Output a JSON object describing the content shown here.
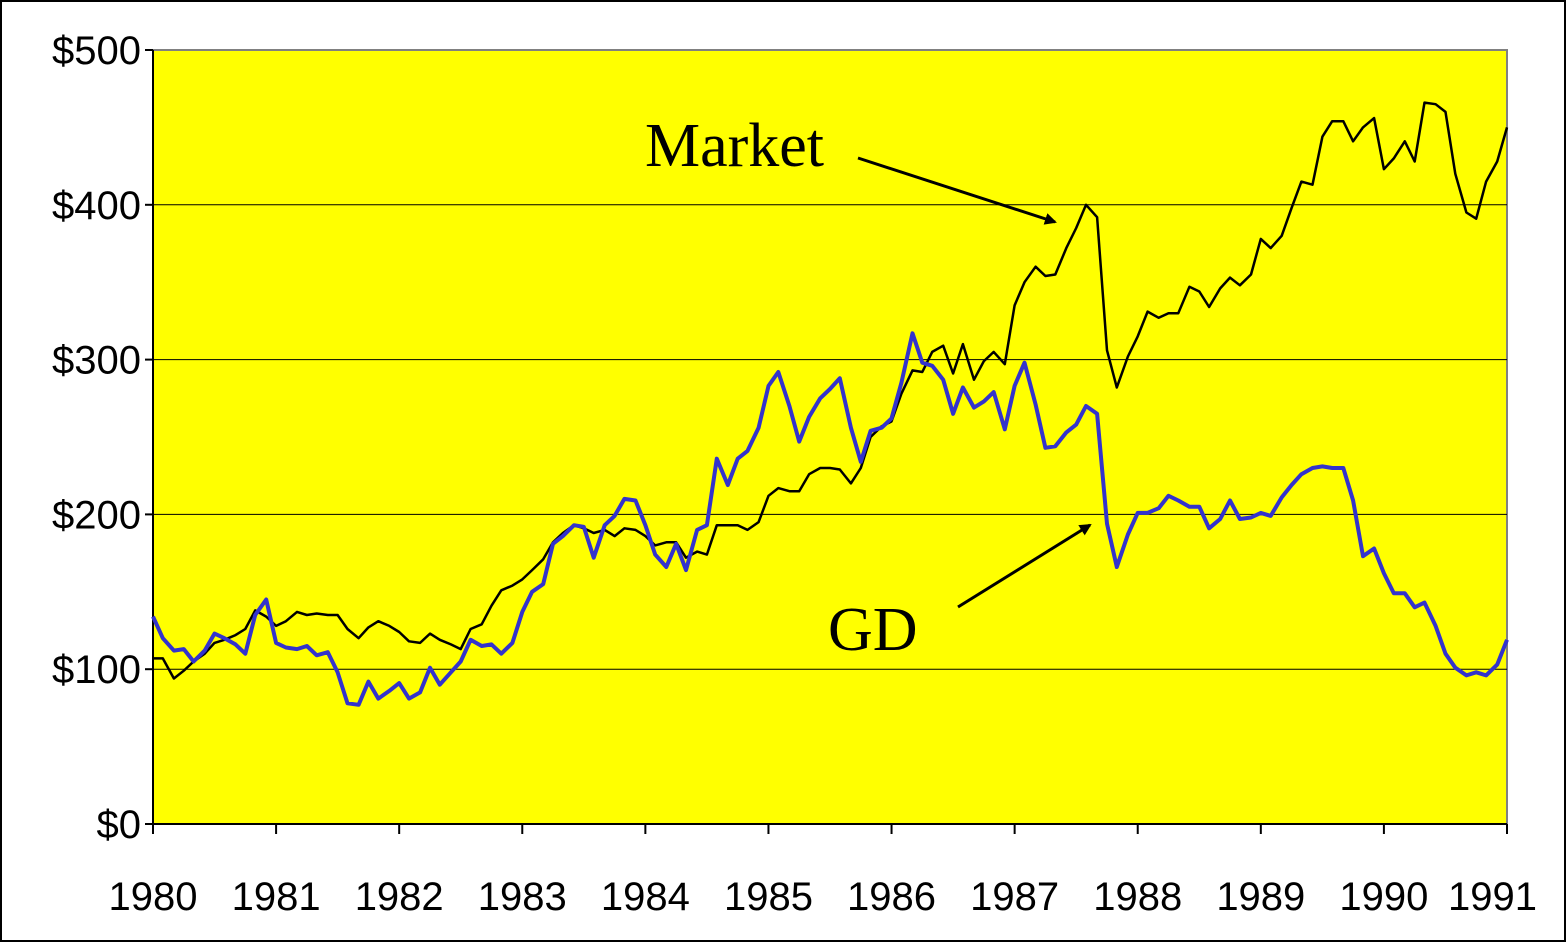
{
  "chart_data": {
    "type": "line",
    "title": "",
    "xlabel": "",
    "ylabel": "",
    "xlim": [
      1980,
      1991
    ],
    "ylim": [
      0,
      500
    ],
    "y_ticks": [
      "$0",
      "$100",
      "$200",
      "$300",
      "$400",
      "$500"
    ],
    "y_tick_values": [
      0,
      100,
      200,
      300,
      400,
      500
    ],
    "x_ticks": [
      "1980",
      "1981",
      "1982",
      "1983",
      "1984",
      "1985",
      "1986",
      "1987",
      "1988",
      "1989",
      "1990",
      "1991"
    ],
    "x_tick_values": [
      1980,
      1981,
      1982,
      1983,
      1984,
      1985,
      1986,
      1987,
      1988,
      1989,
      1990,
      1991
    ],
    "grid": "horizontal",
    "plot_background": "#FFFF00",
    "series": [
      {
        "name": "Market",
        "color": "#000000",
        "points": [
          [
            1980.0,
            107
          ],
          [
            1980.08,
            107
          ],
          [
            1980.17,
            94
          ],
          [
            1980.25,
            99
          ],
          [
            1980.33,
            105
          ],
          [
            1980.42,
            110
          ],
          [
            1980.5,
            117
          ],
          [
            1980.58,
            119
          ],
          [
            1980.67,
            122
          ],
          [
            1980.75,
            126
          ],
          [
            1980.83,
            138
          ],
          [
            1980.92,
            134
          ],
          [
            1981.0,
            128
          ],
          [
            1981.08,
            131
          ],
          [
            1981.17,
            137
          ],
          [
            1981.25,
            135
          ],
          [
            1981.33,
            136
          ],
          [
            1981.42,
            135
          ],
          [
            1981.5,
            135
          ],
          [
            1981.58,
            126
          ],
          [
            1981.67,
            120
          ],
          [
            1981.75,
            127
          ],
          [
            1981.83,
            131
          ],
          [
            1981.92,
            128
          ],
          [
            1982.0,
            124
          ],
          [
            1982.08,
            118
          ],
          [
            1982.17,
            117
          ],
          [
            1982.25,
            123
          ],
          [
            1982.33,
            119
          ],
          [
            1982.42,
            116
          ],
          [
            1982.5,
            113
          ],
          [
            1982.58,
            126
          ],
          [
            1982.67,
            129
          ],
          [
            1982.75,
            141
          ],
          [
            1982.83,
            151
          ],
          [
            1982.92,
            154
          ],
          [
            1983.0,
            158
          ],
          [
            1983.08,
            164
          ],
          [
            1983.17,
            171
          ],
          [
            1983.25,
            182
          ],
          [
            1983.33,
            188
          ],
          [
            1983.42,
            193
          ],
          [
            1983.5,
            191
          ],
          [
            1983.58,
            188
          ],
          [
            1983.67,
            190
          ],
          [
            1983.75,
            186
          ],
          [
            1983.83,
            191
          ],
          [
            1983.92,
            190
          ],
          [
            1984.0,
            186
          ],
          [
            1984.08,
            180
          ],
          [
            1984.17,
            182
          ],
          [
            1984.25,
            182
          ],
          [
            1984.33,
            172
          ],
          [
            1984.42,
            176
          ],
          [
            1984.5,
            174
          ],
          [
            1984.58,
            193
          ],
          [
            1984.67,
            193
          ],
          [
            1984.75,
            193
          ],
          [
            1984.83,
            190
          ],
          [
            1984.92,
            195
          ],
          [
            1985.0,
            212
          ],
          [
            1985.08,
            217
          ],
          [
            1985.17,
            215
          ],
          [
            1985.25,
            215
          ],
          [
            1985.33,
            226
          ],
          [
            1985.42,
            230
          ],
          [
            1985.5,
            230
          ],
          [
            1985.58,
            229
          ],
          [
            1985.67,
            220
          ],
          [
            1985.75,
            230
          ],
          [
            1985.83,
            250
          ],
          [
            1985.92,
            257
          ],
          [
            1986.0,
            260
          ],
          [
            1986.08,
            278
          ],
          [
            1986.17,
            293
          ],
          [
            1986.25,
            292
          ],
          [
            1986.33,
            305
          ],
          [
            1986.42,
            309
          ],
          [
            1986.5,
            291
          ],
          [
            1986.58,
            310
          ],
          [
            1986.67,
            287
          ],
          [
            1986.75,
            299
          ],
          [
            1986.83,
            305
          ],
          [
            1986.92,
            297
          ],
          [
            1987.0,
            335
          ],
          [
            1987.08,
            350
          ],
          [
            1987.17,
            360
          ],
          [
            1987.25,
            354
          ],
          [
            1987.33,
            355
          ],
          [
            1987.42,
            372
          ],
          [
            1987.5,
            385
          ],
          [
            1987.58,
            400
          ],
          [
            1987.67,
            392
          ],
          [
            1987.75,
            306
          ],
          [
            1987.83,
            282
          ],
          [
            1987.92,
            302
          ],
          [
            1988.0,
            315
          ],
          [
            1988.08,
            331
          ],
          [
            1988.17,
            327
          ],
          [
            1988.25,
            330
          ],
          [
            1988.33,
            330
          ],
          [
            1988.42,
            347
          ],
          [
            1988.5,
            344
          ],
          [
            1988.58,
            334
          ],
          [
            1988.67,
            346
          ],
          [
            1988.75,
            353
          ],
          [
            1988.83,
            348
          ],
          [
            1988.92,
            355
          ],
          [
            1989.0,
            378
          ],
          [
            1989.08,
            372
          ],
          [
            1989.17,
            380
          ],
          [
            1989.25,
            398
          ],
          [
            1989.33,
            415
          ],
          [
            1989.42,
            413
          ],
          [
            1989.5,
            444
          ],
          [
            1989.58,
            454
          ],
          [
            1989.67,
            454
          ],
          [
            1989.75,
            441
          ],
          [
            1989.83,
            450
          ],
          [
            1989.92,
            456
          ],
          [
            1990.0,
            423
          ],
          [
            1990.08,
            430
          ],
          [
            1990.17,
            441
          ],
          [
            1990.25,
            428
          ],
          [
            1990.33,
            466
          ],
          [
            1990.42,
            465
          ],
          [
            1990.5,
            460
          ],
          [
            1990.58,
            420
          ],
          [
            1990.67,
            395
          ],
          [
            1990.75,
            391
          ],
          [
            1990.83,
            415
          ],
          [
            1990.92,
            428
          ],
          [
            1991.0,
            450
          ]
        ]
      },
      {
        "name": "GD",
        "color": "#3333CC",
        "points": [
          [
            1980.0,
            134
          ],
          [
            1980.08,
            120
          ],
          [
            1980.17,
            112
          ],
          [
            1980.25,
            113
          ],
          [
            1980.33,
            105
          ],
          [
            1980.42,
            112
          ],
          [
            1980.5,
            123
          ],
          [
            1980.58,
            120
          ],
          [
            1980.67,
            116
          ],
          [
            1980.75,
            110
          ],
          [
            1980.83,
            135
          ],
          [
            1980.92,
            145
          ],
          [
            1981.0,
            117
          ],
          [
            1981.08,
            114
          ],
          [
            1981.17,
            113
          ],
          [
            1981.25,
            115
          ],
          [
            1981.33,
            109
          ],
          [
            1981.42,
            111
          ],
          [
            1981.5,
            98
          ],
          [
            1981.58,
            78
          ],
          [
            1981.67,
            77
          ],
          [
            1981.75,
            92
          ],
          [
            1981.83,
            81
          ],
          [
            1981.92,
            86
          ],
          [
            1982.0,
            91
          ],
          [
            1982.08,
            81
          ],
          [
            1982.17,
            85
          ],
          [
            1982.25,
            101
          ],
          [
            1982.33,
            90
          ],
          [
            1982.42,
            98
          ],
          [
            1982.5,
            105
          ],
          [
            1982.58,
            119
          ],
          [
            1982.67,
            115
          ],
          [
            1982.75,
            116
          ],
          [
            1982.83,
            110
          ],
          [
            1982.92,
            117
          ],
          [
            1983.0,
            137
          ],
          [
            1983.08,
            150
          ],
          [
            1983.17,
            155
          ],
          [
            1983.25,
            181
          ],
          [
            1983.33,
            186
          ],
          [
            1983.42,
            193
          ],
          [
            1983.5,
            192
          ],
          [
            1983.58,
            172
          ],
          [
            1983.67,
            193
          ],
          [
            1983.75,
            199
          ],
          [
            1983.83,
            210
          ],
          [
            1983.92,
            209
          ],
          [
            1984.0,
            193
          ],
          [
            1984.08,
            174
          ],
          [
            1984.17,
            166
          ],
          [
            1984.25,
            181
          ],
          [
            1984.33,
            164
          ],
          [
            1984.42,
            190
          ],
          [
            1984.5,
            193
          ],
          [
            1984.58,
            236
          ],
          [
            1984.67,
            219
          ],
          [
            1984.75,
            236
          ],
          [
            1984.83,
            241
          ],
          [
            1984.92,
            256
          ],
          [
            1985.0,
            283
          ],
          [
            1985.08,
            292
          ],
          [
            1985.17,
            270
          ],
          [
            1985.25,
            247
          ],
          [
            1985.33,
            263
          ],
          [
            1985.42,
            275
          ],
          [
            1985.5,
            281
          ],
          [
            1985.58,
            288
          ],
          [
            1985.67,
            256
          ],
          [
            1985.75,
            234
          ],
          [
            1985.83,
            254
          ],
          [
            1985.92,
            256
          ],
          [
            1986.0,
            262
          ],
          [
            1986.08,
            285
          ],
          [
            1986.17,
            317
          ],
          [
            1986.25,
            298
          ],
          [
            1986.33,
            296
          ],
          [
            1986.42,
            287
          ],
          [
            1986.5,
            265
          ],
          [
            1986.58,
            282
          ],
          [
            1986.67,
            269
          ],
          [
            1986.75,
            273
          ],
          [
            1986.83,
            279
          ],
          [
            1986.92,
            255
          ],
          [
            1987.0,
            283
          ],
          [
            1987.08,
            298
          ],
          [
            1987.17,
            271
          ],
          [
            1987.25,
            243
          ],
          [
            1987.33,
            244
          ],
          [
            1987.42,
            253
          ],
          [
            1987.5,
            258
          ],
          [
            1987.58,
            270
          ],
          [
            1987.67,
            265
          ],
          [
            1987.75,
            194
          ],
          [
            1987.83,
            166
          ],
          [
            1987.92,
            187
          ],
          [
            1988.0,
            201
          ],
          [
            1988.08,
            201
          ],
          [
            1988.17,
            204
          ],
          [
            1988.25,
            212
          ],
          [
            1988.33,
            209
          ],
          [
            1988.42,
            205
          ],
          [
            1988.5,
            205
          ],
          [
            1988.58,
            191
          ],
          [
            1988.67,
            197
          ],
          [
            1988.75,
            209
          ],
          [
            1988.83,
            197
          ],
          [
            1988.92,
            198
          ],
          [
            1989.0,
            201
          ],
          [
            1989.08,
            199
          ],
          [
            1989.17,
            211
          ],
          [
            1989.25,
            219
          ],
          [
            1989.33,
            226
          ],
          [
            1989.42,
            230
          ],
          [
            1989.5,
            231
          ],
          [
            1989.58,
            230
          ],
          [
            1989.67,
            230
          ],
          [
            1989.75,
            209
          ],
          [
            1989.83,
            173
          ],
          [
            1989.92,
            178
          ],
          [
            1990.0,
            162
          ],
          [
            1990.08,
            149
          ],
          [
            1990.17,
            149
          ],
          [
            1990.25,
            140
          ],
          [
            1990.33,
            143
          ],
          [
            1990.42,
            128
          ],
          [
            1990.5,
            110
          ],
          [
            1990.58,
            101
          ],
          [
            1990.67,
            96
          ],
          [
            1990.75,
            98
          ],
          [
            1990.83,
            96
          ],
          [
            1990.92,
            103
          ],
          [
            1991.0,
            119
          ]
        ]
      }
    ],
    "annotations": [
      {
        "text": "Market",
        "points_to_series": "Market"
      },
      {
        "text": "GD",
        "points_to_series": "GD"
      }
    ]
  }
}
